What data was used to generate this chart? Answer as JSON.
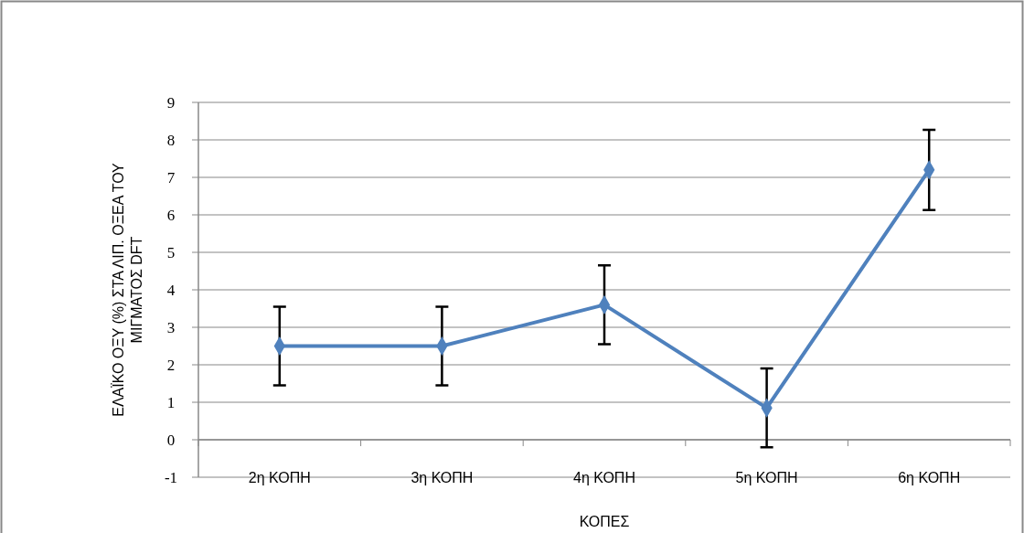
{
  "chart_data": {
    "type": "line",
    "xlabel": "ΚΟΠΕΣ",
    "ylabel": "ΕΛΑΪΚΟ ΟΞΥ (%) ΣΤΑ ΛΙΠ. ΟΞΕΑ ΤΟΥ ΜΙΓΜΑΤΟΣ DFT",
    "categories": [
      "2η ΚΟΠΗ",
      "3η ΚΟΠΗ",
      "4η ΚΟΠΗ",
      "5η ΚΟΠΗ",
      "6η ΚΟΠΗ"
    ],
    "series": [
      {
        "color": "#4f81bd",
        "values": [
          2.5,
          2.5,
          3.6,
          0.85,
          7.2
        ],
        "errors": [
          1.05,
          1.05,
          1.05,
          1.05,
          1.07
        ]
      }
    ],
    "ylim": [
      -1,
      9
    ],
    "yticks": [
      -1,
      0,
      1,
      2,
      3,
      4,
      5,
      6,
      7,
      8,
      9
    ],
    "grid": "y",
    "marker": "diamond",
    "line_style": "solid"
  }
}
